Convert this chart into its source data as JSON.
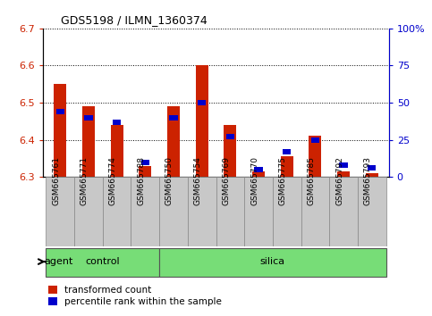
{
  "title": "GDS5198 / ILMN_1360374",
  "samples": [
    "GSM665761",
    "GSM665771",
    "GSM665774",
    "GSM665788",
    "GSM665750",
    "GSM665754",
    "GSM665769",
    "GSM665770",
    "GSM665775",
    "GSM665785",
    "GSM665792",
    "GSM665793"
  ],
  "red_values": [
    6.55,
    6.49,
    6.44,
    6.33,
    6.49,
    6.6,
    6.44,
    6.315,
    6.355,
    6.41,
    6.315,
    6.31
  ],
  "blue_values_pct": [
    44,
    40,
    37,
    10,
    40,
    50,
    27,
    5,
    17,
    25,
    8,
    6
  ],
  "ylim_left": [
    6.3,
    6.7
  ],
  "ylim_right": [
    0,
    100
  ],
  "yticks_left": [
    6.3,
    6.4,
    6.5,
    6.6,
    6.7
  ],
  "yticks_right": [
    0,
    25,
    50,
    75,
    100
  ],
  "ytick_labels_right": [
    "0",
    "25",
    "50",
    "75",
    "100%"
  ],
  "control_count": 4,
  "silica_count": 8,
  "control_label": "control",
  "silica_label": "silica",
  "agent_label": "agent",
  "legend_red": "transformed count",
  "legend_blue": "percentile rank within the sample",
  "bar_bottom": 6.3,
  "blue_bar_width": 0.3,
  "red_bar_width": 0.45,
  "plot_bg": "#d8d8d8",
  "label_bg": "#c8c8c8",
  "green_color": "#77dd77",
  "red_color": "#cc2200",
  "blue_color": "#0000cc",
  "white": "#ffffff"
}
